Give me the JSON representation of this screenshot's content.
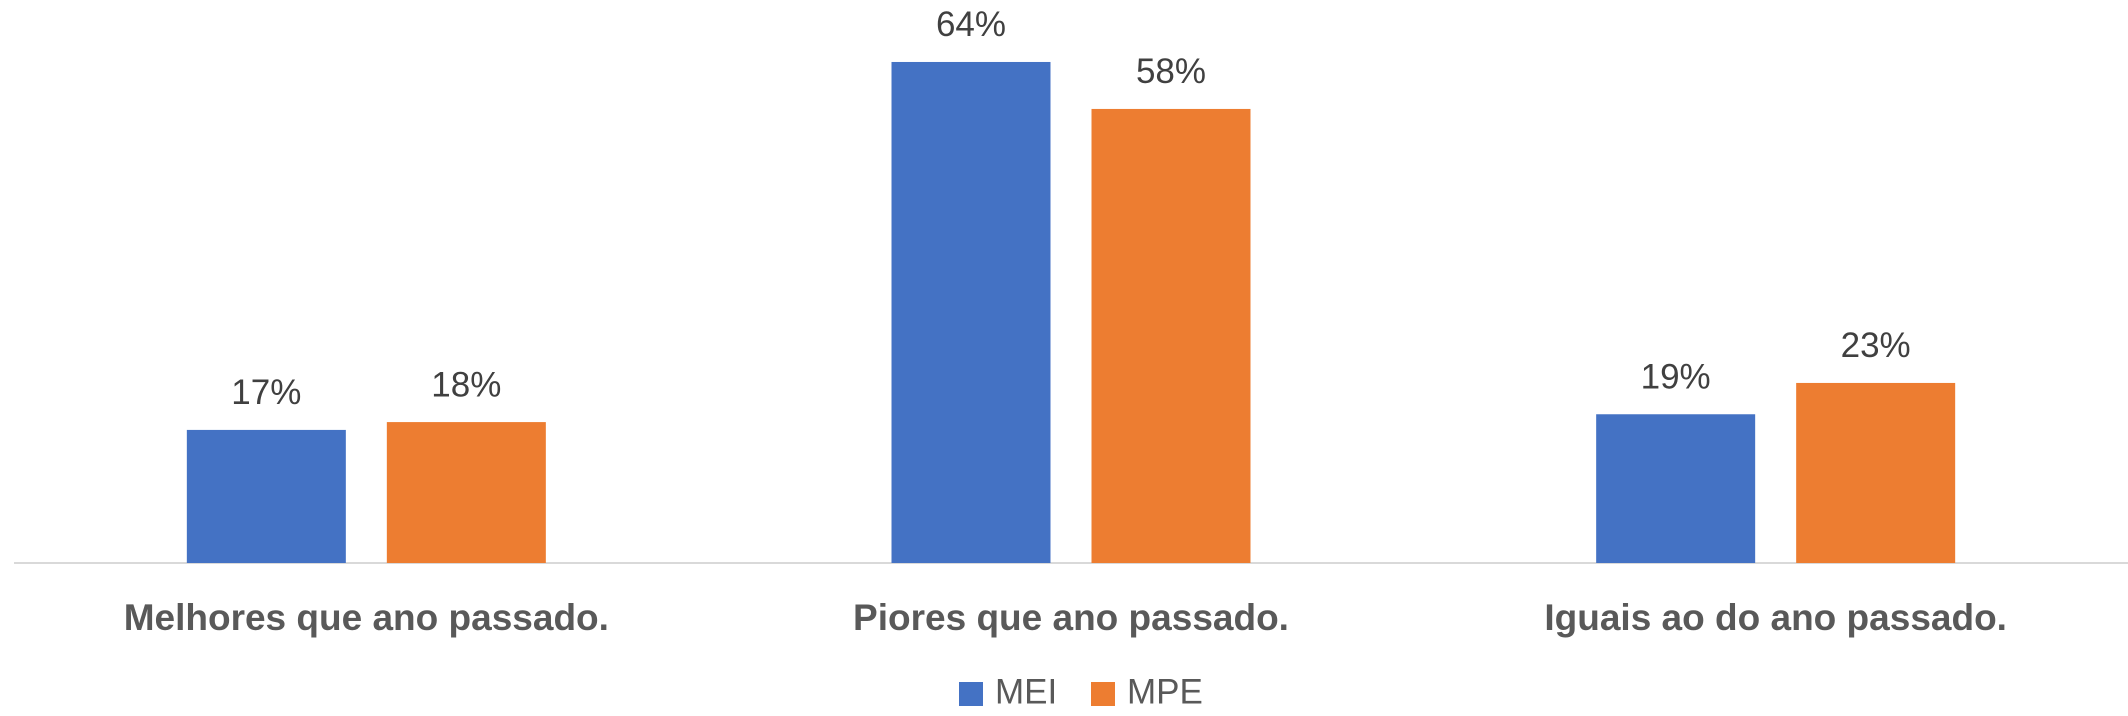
{
  "chart_data": {
    "type": "bar",
    "categories": [
      "Melhores que ano passado.",
      "Piores que ano passado.",
      "Iguais ao do ano passado."
    ],
    "series": [
      {
        "name": "MEI",
        "color": "#4472c4",
        "values": [
          17,
          64,
          19
        ],
        "value_labels": [
          "17%",
          "64%",
          "19%"
        ]
      },
      {
        "name": "MPE",
        "color": "#ed7d31",
        "values": [
          18,
          58,
          23
        ],
        "value_labels": [
          "18%",
          "58%",
          "23%"
        ]
      }
    ],
    "ylim": [
      0,
      70
    ],
    "legend": "bottom"
  }
}
